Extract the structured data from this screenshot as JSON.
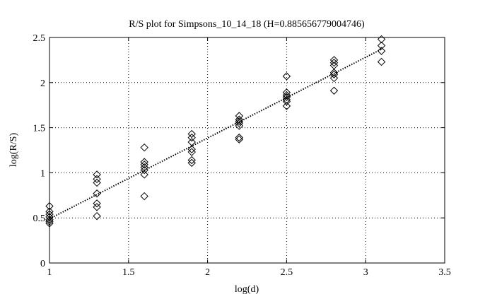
{
  "chart_data": {
    "type": "scatter",
    "title": "R/S plot for Simpsons_10_14_18 (H=0.885656779004746)",
    "xlabel": "log(d)",
    "ylabel": "log(R/S)",
    "xlim": [
      1,
      3.5
    ],
    "ylim": [
      0,
      2.5
    ],
    "xticks": [
      "1",
      "1.5",
      "2",
      "2.5",
      "3",
      "3.5"
    ],
    "yticks": [
      "0",
      "0.5",
      "1",
      "1.5",
      "2",
      "2.5"
    ],
    "grid": true,
    "marker": "diamond",
    "points": [
      [
        1.0,
        0.44
      ],
      [
        1.0,
        0.46
      ],
      [
        1.0,
        0.48
      ],
      [
        1.0,
        0.51
      ],
      [
        1.0,
        0.54
      ],
      [
        1.0,
        0.57
      ],
      [
        1.0,
        0.63
      ],
      [
        1.3,
        0.52
      ],
      [
        1.3,
        0.62
      ],
      [
        1.3,
        0.66
      ],
      [
        1.3,
        0.77
      ],
      [
        1.3,
        0.89
      ],
      [
        1.3,
        0.93
      ],
      [
        1.3,
        0.98
      ],
      [
        1.6,
        0.74
      ],
      [
        1.6,
        0.98
      ],
      [
        1.6,
        1.03
      ],
      [
        1.6,
        1.06
      ],
      [
        1.6,
        1.09
      ],
      [
        1.6,
        1.12
      ],
      [
        1.6,
        1.28
      ],
      [
        1.9,
        1.11
      ],
      [
        1.9,
        1.14
      ],
      [
        1.9,
        1.23
      ],
      [
        1.9,
        1.26
      ],
      [
        1.9,
        1.34
      ],
      [
        1.9,
        1.39
      ],
      [
        1.9,
        1.43
      ],
      [
        2.2,
        1.37
      ],
      [
        2.2,
        1.39
      ],
      [
        2.2,
        1.52
      ],
      [
        2.2,
        1.55
      ],
      [
        2.2,
        1.57
      ],
      [
        2.2,
        1.59
      ],
      [
        2.2,
        1.63
      ],
      [
        2.5,
        1.74
      ],
      [
        2.5,
        1.79
      ],
      [
        2.5,
        1.81
      ],
      [
        2.5,
        1.84
      ],
      [
        2.5,
        1.86
      ],
      [
        2.5,
        1.89
      ],
      [
        2.5,
        2.07
      ],
      [
        2.8,
        1.91
      ],
      [
        2.8,
        2.05
      ],
      [
        2.8,
        2.09
      ],
      [
        2.8,
        2.11
      ],
      [
        2.8,
        2.19
      ],
      [
        2.8,
        2.22
      ],
      [
        2.8,
        2.25
      ],
      [
        3.1,
        2.23
      ],
      [
        3.1,
        2.35
      ],
      [
        3.1,
        2.41
      ],
      [
        3.1,
        2.48
      ]
    ],
    "fit_line": {
      "style": "dotted",
      "x": [
        1.0,
        3.1
      ],
      "y": [
        0.49,
        2.37
      ]
    }
  }
}
